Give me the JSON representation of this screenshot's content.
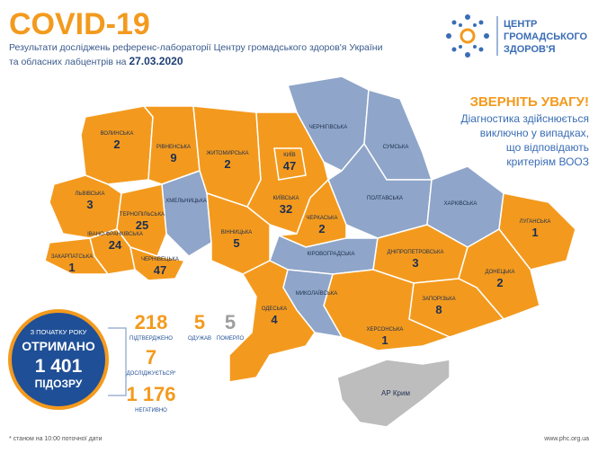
{
  "header": {
    "title": "COVID-19",
    "subtitle_line1": "Результати досліджень референс-лабораторії Центру громадського здоров'я України",
    "subtitle_line2": "та обласних лабцентрів на",
    "date": "27.03.2020"
  },
  "logo": {
    "line1": "ЦЕНТР",
    "line2": "ГРОМАДСЬКОГО",
    "line3": "ЗДОРОВ'Я"
  },
  "notice": {
    "title": "ЗВЕРНІТЬ УВАГУ!",
    "lines": [
      "Діагностика здійснюється",
      "виключно у випадках,",
      "що відповідають",
      "критеріям ВООЗ"
    ]
  },
  "map": {
    "regions": [
      {
        "name": "ВОЛИНСЬКА",
        "count": 2,
        "color": "#f39a1e"
      },
      {
        "name": "РІВНЕНСЬКА",
        "count": 9,
        "color": "#f39a1e"
      },
      {
        "name": "ЖИТОМИРСЬКА",
        "count": 2,
        "color": "#f39a1e"
      },
      {
        "name": "ХМЕЛЬНИЦЬКА",
        "color": "#8fa5c9"
      },
      {
        "name": "ЛЬВІВСЬКА",
        "count": 3,
        "color": "#f39a1e"
      },
      {
        "name": "ТЕРНОПІЛЬСЬКА",
        "count": 25,
        "color": "#f39a1e"
      },
      {
        "name": "ІВАНО-ФРАНКІВСЬКА",
        "count": 24,
        "color": "#f39a1e"
      },
      {
        "name": "ЗАКАРПАТСЬКА",
        "count": 1,
        "color": "#f39a1e"
      },
      {
        "name": "ЧЕРНІВЕЦЬКА",
        "count": 47,
        "color": "#f39a1e"
      },
      {
        "name": "ВІННИЦЬКА",
        "count": 5,
        "color": "#f39a1e"
      },
      {
        "name": "КИЇВСЬКА",
        "count": 32,
        "color": "#f39a1e"
      },
      {
        "name": "КИЇВ",
        "count": 47,
        "color": "#f39a1e"
      },
      {
        "name": "ЧЕРНІГІВСЬКА",
        "color": "#8fa5c9"
      },
      {
        "name": "СУМСЬКА",
        "color": "#8fa5c9"
      },
      {
        "name": "ПОЛТАВСЬКА",
        "color": "#8fa5c9"
      },
      {
        "name": "ХАРКІВСЬКА",
        "color": "#8fa5c9"
      },
      {
        "name": "ЧЕРКАСЬКА",
        "count": 2,
        "color": "#f39a1e"
      },
      {
        "name": "КІРОВОГРАДСЬКА",
        "color": "#8fa5c9"
      },
      {
        "name": "ДНІПРОПЕТРОВСЬКА",
        "count": 3,
        "color": "#f39a1e"
      },
      {
        "name": "ЛУГАНСЬКА",
        "count": 1,
        "color": "#f39a1e"
      },
      {
        "name": "ДОНЕЦЬКА",
        "count": 2,
        "color": "#f39a1e"
      },
      {
        "name": "ЗАПОРІЗЬКА",
        "count": 8,
        "color": "#f39a1e"
      },
      {
        "name": "ХЕРСОНСЬКА",
        "count": 1,
        "color": "#f39a1e"
      },
      {
        "name": "МИКОЛАЇВСЬКА",
        "color": "#8fa5c9"
      },
      {
        "name": "ОДЕСЬКА",
        "count": 4,
        "color": "#f39a1e"
      },
      {
        "name": "АР Крим",
        "color": "#bdbdbd"
      }
    ]
  },
  "summary": {
    "since": "З ПОЧАТКУ РОКУ",
    "received": "ОТРИМАНО",
    "total": "1 401",
    "suspected": "ПІДОЗРУ",
    "confirmed": 218,
    "confirmed_label": "ПІДТВЕРДЖЕНО",
    "recovered": 5,
    "recovered_label": "ОДУЖАВ",
    "died": 5,
    "died_label": "ПОМЕРЛО",
    "testing": 7,
    "testing_label": "ДОСЛІДЖУЄТЬСЯ*",
    "negative": "1 176",
    "negative_label": "НЕГАТИВНО"
  },
  "footer": {
    "note": "* станом на 10:00 поточної дати",
    "url": "www.phc.org.ua"
  }
}
